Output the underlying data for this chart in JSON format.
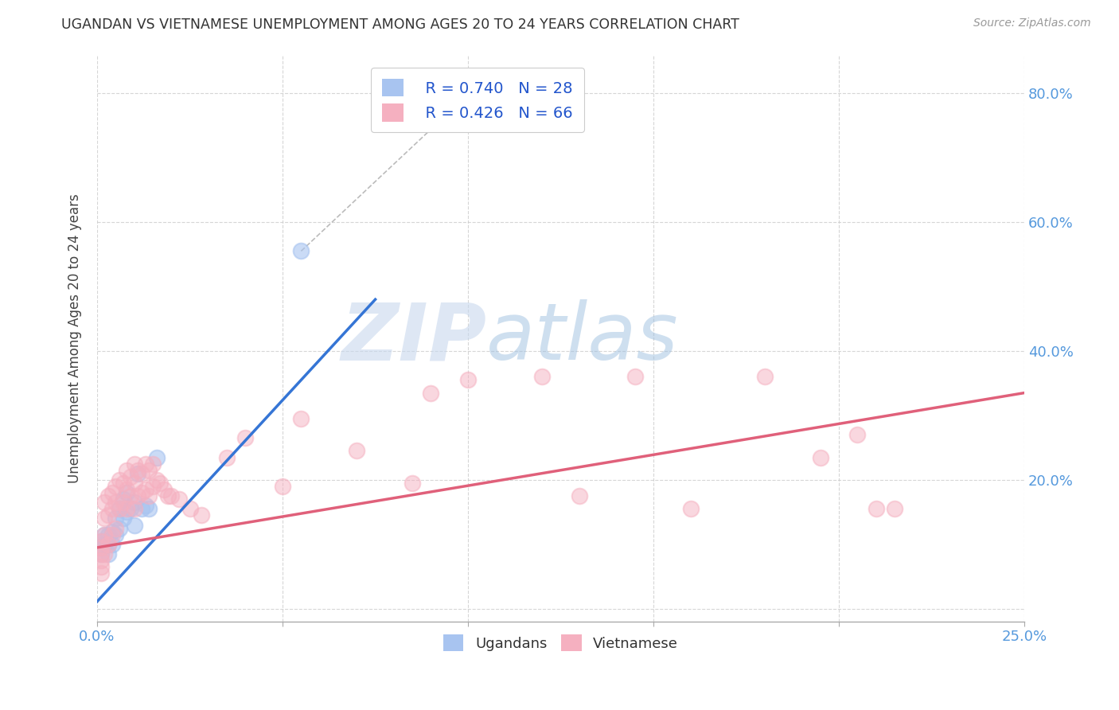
{
  "title": "UGANDAN VS VIETNAMESE UNEMPLOYMENT AMONG AGES 20 TO 24 YEARS CORRELATION CHART",
  "source": "Source: ZipAtlas.com",
  "ylabel": "Unemployment Among Ages 20 to 24 years",
  "xlim": [
    0.0,
    0.25
  ],
  "ylim": [
    -0.02,
    0.86
  ],
  "xticks": [
    0.0,
    0.05,
    0.1,
    0.15,
    0.2,
    0.25
  ],
  "xticklabels": [
    "0.0%",
    "",
    "",
    "",
    "",
    "25.0%"
  ],
  "yticks": [
    0.0,
    0.2,
    0.4,
    0.6,
    0.8
  ],
  "yticklabels": [
    "",
    "20.0%",
    "40.0%",
    "60.0%",
    "80.0%"
  ],
  "ugandan_color": "#a8c4f0",
  "vietnamese_color": "#f5b0c0",
  "ugandan_edge_color": "#a8c4f0",
  "vietnamese_edge_color": "#f5b0c0",
  "ugandan_line_color": "#3575d5",
  "vietnamese_line_color": "#e0607a",
  "legend_R_ugandan": "R = 0.740",
  "legend_N_ugandan": "N = 28",
  "legend_R_vietnamese": "R = 0.426",
  "legend_N_vietnamese": "N = 66",
  "watermark_zip": "ZIP",
  "watermark_atlas": "atlas",
  "ugandan_scatter_x": [
    0.001,
    0.001,
    0.001,
    0.002,
    0.002,
    0.003,
    0.003,
    0.003,
    0.004,
    0.004,
    0.005,
    0.005,
    0.006,
    0.006,
    0.007,
    0.007,
    0.008,
    0.008,
    0.009,
    0.01,
    0.01,
    0.011,
    0.012,
    0.013,
    0.014,
    0.016,
    0.055,
    0.105
  ],
  "ugandan_scatter_y": [
    0.105,
    0.095,
    0.085,
    0.115,
    0.1,
    0.115,
    0.1,
    0.085,
    0.12,
    0.1,
    0.14,
    0.115,
    0.155,
    0.125,
    0.17,
    0.14,
    0.18,
    0.15,
    0.155,
    0.165,
    0.13,
    0.21,
    0.155,
    0.16,
    0.155,
    0.235,
    0.555,
    0.825
  ],
  "vietnamese_scatter_x": [
    0.001,
    0.001,
    0.001,
    0.001,
    0.001,
    0.001,
    0.002,
    0.002,
    0.002,
    0.002,
    0.003,
    0.003,
    0.003,
    0.004,
    0.004,
    0.004,
    0.005,
    0.005,
    0.005,
    0.006,
    0.006,
    0.007,
    0.007,
    0.008,
    0.008,
    0.008,
    0.009,
    0.009,
    0.01,
    0.01,
    0.01,
    0.011,
    0.011,
    0.012,
    0.012,
    0.013,
    0.013,
    0.014,
    0.014,
    0.015,
    0.015,
    0.016,
    0.017,
    0.018,
    0.019,
    0.02,
    0.022,
    0.025,
    0.028,
    0.035,
    0.04,
    0.05,
    0.055,
    0.07,
    0.085,
    0.09,
    0.1,
    0.12,
    0.13,
    0.145,
    0.16,
    0.18,
    0.195,
    0.205,
    0.21,
    0.215
  ],
  "vietnamese_scatter_y": [
    0.105,
    0.095,
    0.085,
    0.075,
    0.065,
    0.055,
    0.165,
    0.14,
    0.115,
    0.085,
    0.175,
    0.145,
    0.1,
    0.18,
    0.155,
    0.115,
    0.19,
    0.165,
    0.125,
    0.2,
    0.155,
    0.195,
    0.165,
    0.215,
    0.185,
    0.155,
    0.205,
    0.175,
    0.225,
    0.195,
    0.155,
    0.215,
    0.175,
    0.21,
    0.18,
    0.225,
    0.185,
    0.215,
    0.175,
    0.225,
    0.19,
    0.2,
    0.195,
    0.185,
    0.175,
    0.175,
    0.17,
    0.155,
    0.145,
    0.235,
    0.265,
    0.19,
    0.295,
    0.245,
    0.195,
    0.335,
    0.355,
    0.36,
    0.175,
    0.36,
    0.155,
    0.36,
    0.235,
    0.27,
    0.155,
    0.155
  ],
  "ugandan_trend_x": [
    -0.005,
    0.075
  ],
  "ugandan_trend_y": [
    -0.02,
    0.48
  ],
  "vietnamese_trend_x": [
    0.0,
    0.25
  ],
  "vietnamese_trend_y": [
    0.095,
    0.335
  ],
  "dashed_line_x": [
    0.055,
    0.105
  ],
  "dashed_line_y": [
    0.555,
    0.825
  ]
}
